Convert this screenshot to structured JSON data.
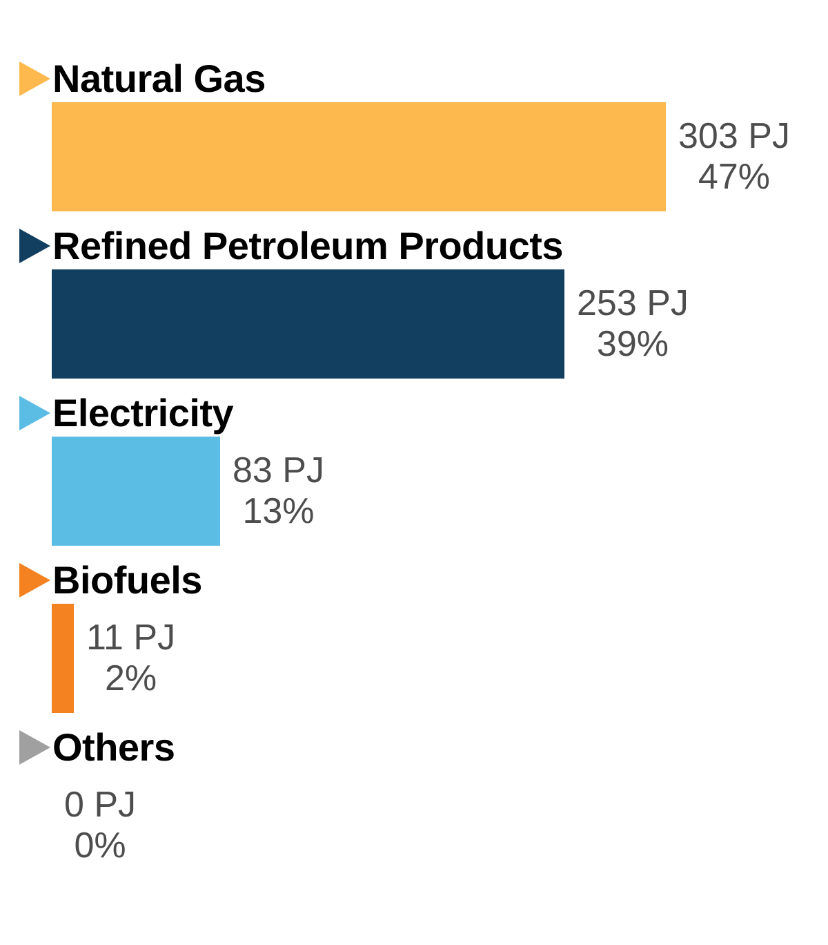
{
  "chart_data": {
    "type": "bar",
    "orientation": "horizontal",
    "title": "",
    "unit": "PJ",
    "categories": [
      "Natural Gas",
      "Refined Petroleum Products",
      "Electricity",
      "Biofuels",
      "Others"
    ],
    "series": [
      {
        "name": "Energy demand (PJ)",
        "values": [
          303,
          253,
          83,
          11,
          0
        ]
      },
      {
        "name": "Share (%)",
        "values": [
          47,
          39,
          13,
          2,
          0
        ]
      }
    ],
    "value_labels": [
      "303 PJ",
      "253 PJ",
      "83 PJ",
      "11 PJ",
      "0 PJ"
    ],
    "percent_labels": [
      "47%",
      "39%",
      "13%",
      "2%",
      "0%"
    ],
    "xlim": [
      0,
      303
    ],
    "grid": false,
    "legend": false,
    "bar_colors": [
      "#FDB94E",
      "#123F5F",
      "#5BBCE4",
      "#F58220",
      "#A0A0A0"
    ]
  },
  "sections": [
    {
      "id": "natural-gas",
      "label": "Natural Gas",
      "value": 303,
      "value_label": "303 PJ",
      "percent_label": "47%",
      "color": "#FDB94E",
      "marker_color": "#FDB94E"
    },
    {
      "id": "refined-petroleum-products",
      "label": "Refined Petroleum Products",
      "value": 253,
      "value_label": "253 PJ",
      "percent_label": "39%",
      "color": "#123F5F",
      "marker_color": "#123F5F"
    },
    {
      "id": "electricity",
      "label": "Electricity",
      "value": 83,
      "value_label": "83 PJ",
      "percent_label": "13%",
      "color": "#5BBCE4",
      "marker_color": "#5BBCE4"
    },
    {
      "id": "biofuels",
      "label": "Biofuels",
      "value": 11,
      "value_label": "11 PJ",
      "percent_label": "2%",
      "color": "#F58220",
      "marker_color": "#F58220"
    },
    {
      "id": "others",
      "label": "Others",
      "value": 0,
      "value_label": "0 PJ",
      "percent_label": "0%",
      "color": "#A0A0A0",
      "marker_color": "#A0A0A0"
    }
  ],
  "style": {
    "background": "#FFFFFF",
    "label_color": "#000000",
    "value_text_color": "#4D4D4D",
    "max_value_for_scale": 303
  }
}
